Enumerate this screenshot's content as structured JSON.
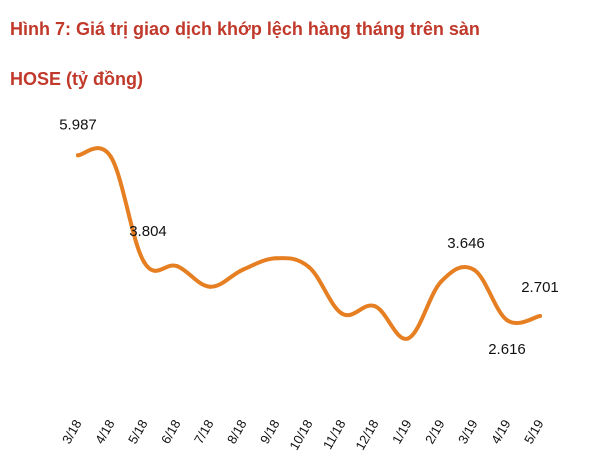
{
  "title_line1": "Hình 7: Giá trị giao dịch khớp lệch hàng tháng trên sàn",
  "title_line2": "HOSE (tỷ đồng)",
  "colors": {
    "title": "#c0392b",
    "line": "#e67e22"
  },
  "chart_data": {
    "type": "line",
    "categories": [
      "3/18",
      "4/18",
      "5/18",
      "6/18",
      "7/18",
      "8/18",
      "9/18",
      "10/18",
      "11/18",
      "12/18",
      "1/19",
      "2/19",
      "3/19",
      "4/19",
      "5/19"
    ],
    "values": [
      5987,
      5950,
      3804,
      3720,
      3300,
      3650,
      3880,
      3700,
      2750,
      2900,
      2240,
      3400,
      3646,
      2616,
      2701
    ],
    "data_labels": [
      {
        "index": 0,
        "text": "5.987"
      },
      {
        "index": 2,
        "text": "3.804"
      },
      {
        "index": 12,
        "text": "3.646"
      },
      {
        "index": 13,
        "text": "2.616"
      },
      {
        "index": 14,
        "text": "2.701"
      }
    ],
    "ylim": [
      0,
      7200
    ],
    "grid": false,
    "legend": "none"
  }
}
